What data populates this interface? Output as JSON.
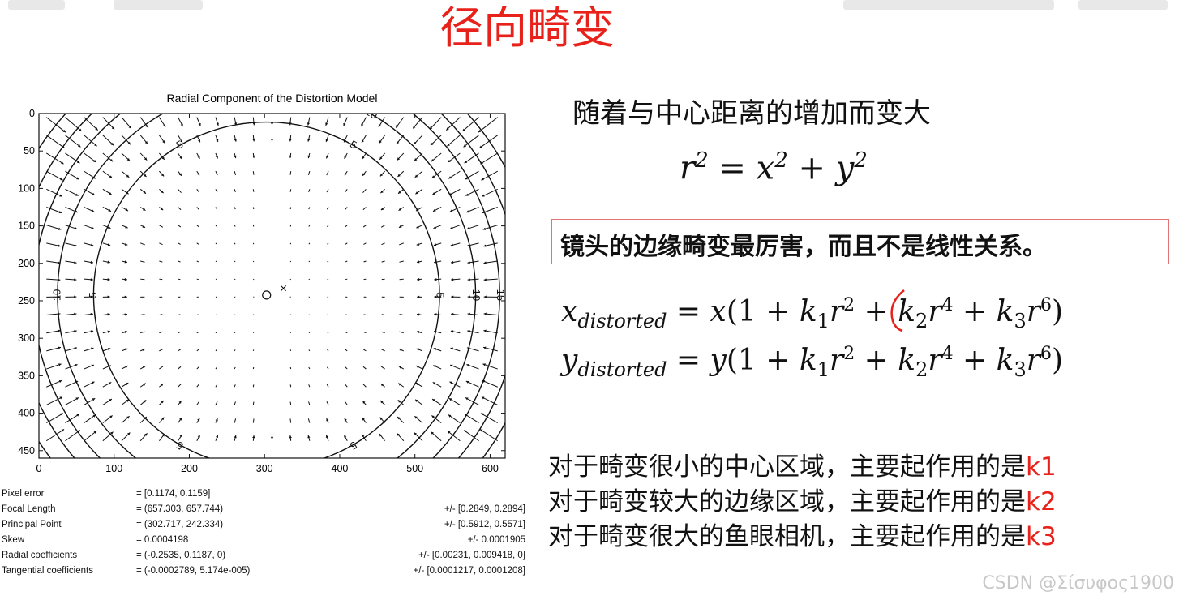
{
  "title": "径向畸变",
  "chart_data": {
    "type": "contour",
    "title": "Radial Component of the Distortion Model",
    "xlim": [
      0,
      620
    ],
    "ylim": [
      0,
      460
    ],
    "x_ticks": [
      0,
      100,
      200,
      300,
      400,
      500,
      600
    ],
    "y_ticks": [
      0,
      50,
      100,
      150,
      200,
      250,
      300,
      350,
      400,
      450
    ],
    "principal_point": [
      302.717,
      242.334
    ],
    "image_center": [
      310,
      240
    ],
    "contours": [
      {
        "level": 5,
        "radius": 230
      },
      {
        "level": 10,
        "radius": 278
      },
      {
        "level": 15,
        "radius": 310
      },
      {
        "level": 20,
        "radius": 335
      },
      {
        "level": 25,
        "radius": 360
      }
    ],
    "contour_labels": [
      "5",
      "10",
      "15",
      "20",
      "25"
    ],
    "radial_coefficients": [
      -0.2535,
      0.1187,
      0
    ]
  },
  "parameters": [
    {
      "label": "Pixel error",
      "value": "= [0.1174, 0.1159]",
      "error": ""
    },
    {
      "label": "Focal Length",
      "value": "= (657.303, 657.744)",
      "error": "+/- [0.2849, 0.2894]"
    },
    {
      "label": "Principal Point",
      "value": "= (302.717, 242.334)",
      "error": "+/- [0.5912, 0.5571]"
    },
    {
      "label": "Skew",
      "value": "= 0.0004198",
      "error": "+/- 0.0001905"
    },
    {
      "label": "Radial coefficients",
      "value": "= (-0.2535, 0.1187, 0)",
      "error": "+/- [0.00231, 0.009418, 0]"
    },
    {
      "label": "Tangential coefficients",
      "value": "= (-0.0002789, 5.174e-005)",
      "error": "+/- [0.0001217, 0.0001208]"
    }
  ],
  "text1": "随着与中心距离的增加而变大",
  "box_text": "镜头的边缘畸变最厉害，而且不是线性关系。",
  "notes": [
    {
      "text": "对于畸变很小的中心区域，主要起作用的是",
      "k": "k1"
    },
    {
      "text": "对于畸变较大的边缘区域，主要起作用的是",
      "k": "k2"
    },
    {
      "text": "对于畸变很大的鱼眼相机，主要起作用的是",
      "k": "k3"
    }
  ],
  "watermark": "CSDN @Σίσυφος1900",
  "colors": {
    "title": "#e8211b",
    "box_border": "#e57373",
    "highlight": "#e8211b"
  }
}
